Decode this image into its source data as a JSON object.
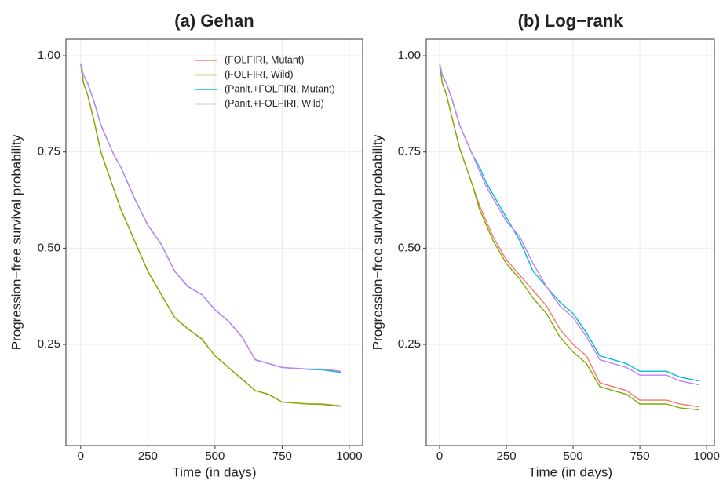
{
  "chart_data": [
    {
      "type": "line",
      "title": "(a) Gehan",
      "x_label": "Time (in days)",
      "y_label": "Progression−free survival probability",
      "x": [
        0,
        10,
        25,
        50,
        75,
        100,
        125,
        150,
        175,
        200,
        250,
        300,
        350,
        400,
        450,
        500,
        550,
        600,
        650,
        700,
        750,
        850,
        900,
        970
      ],
      "xlim": [
        -55,
        1050
      ],
      "xticks": [
        0,
        250,
        500,
        750,
        1000
      ],
      "ylim": [
        -0.013,
        1.043
      ],
      "yticks": [
        {
          "value": 0.25,
          "label": "0.25"
        },
        {
          "value": 0.5,
          "label": "0.50"
        },
        {
          "value": 0.75,
          "label": "0.75"
        },
        {
          "value": 1,
          "label": "1.00"
        }
      ],
      "grid": true,
      "legend": "top-right",
      "series": [
        {
          "name": "(FOLFIRI, Mutant)",
          "color": "#F8766D",
          "values": [
            0.98,
            0.93,
            0.9,
            0.83,
            0.75,
            0.7,
            0.65,
            0.6,
            0.56,
            0.52,
            0.44,
            0.38,
            0.32,
            0.29,
            0.265,
            0.22,
            0.19,
            0.16,
            0.13,
            0.12,
            0.1,
            0.095,
            0.095,
            0.09
          ]
        },
        {
          "name": "(FOLFIRI, Wild)",
          "color": "#7CAE00",
          "values": [
            0.98,
            0.93,
            0.9,
            0.83,
            0.75,
            0.7,
            0.65,
            0.6,
            0.56,
            0.52,
            0.44,
            0.38,
            0.32,
            0.29,
            0.264,
            0.22,
            0.19,
            0.16,
            0.13,
            0.12,
            0.1,
            0.095,
            0.094,
            0.089
          ]
        },
        {
          "name": "(Panit.+FOLFIRI, Mutant)",
          "color": "#00BFC4",
          "values": [
            0.98,
            0.95,
            0.93,
            0.88,
            0.82,
            0.78,
            0.74,
            0.71,
            0.67,
            0.63,
            0.56,
            0.51,
            0.44,
            0.4,
            0.38,
            0.34,
            0.31,
            0.27,
            0.21,
            0.2,
            0.19,
            0.185,
            0.184,
            0.177
          ]
        },
        {
          "name": "(Panit.+FOLFIRI, Wild)",
          "color": "#C77CFF",
          "values": [
            0.98,
            0.95,
            0.93,
            0.88,
            0.82,
            0.78,
            0.74,
            0.71,
            0.67,
            0.63,
            0.56,
            0.51,
            0.44,
            0.4,
            0.38,
            0.34,
            0.31,
            0.27,
            0.21,
            0.2,
            0.19,
            0.186,
            0.186,
            0.18
          ]
        }
      ]
    },
    {
      "type": "line",
      "title": "(b) Log−rank",
      "x_label": "Time (in days)",
      "y_label": "Progression−free survival probability",
      "x": [
        0,
        10,
        25,
        50,
        75,
        100,
        125,
        150,
        175,
        200,
        250,
        300,
        350,
        400,
        450,
        500,
        550,
        600,
        650,
        700,
        750,
        850,
        900,
        970
      ],
      "xlim": [
        -50,
        1029
      ],
      "xticks": [
        0,
        250,
        500,
        750,
        1000
      ],
      "ylim": [
        -0.013,
        1.043
      ],
      "yticks": [
        {
          "value": 0.25,
          "label": "0.25"
        },
        {
          "value": 0.5,
          "label": "0.50"
        },
        {
          "value": 0.75,
          "label": "0.75"
        },
        {
          "value": 1,
          "label": "1.00"
        }
      ],
      "grid": true,
      "series": [
        {
          "color": "#F8766D",
          "values": [
            0.98,
            0.93,
            0.9,
            0.83,
            0.76,
            0.71,
            0.66,
            0.61,
            0.57,
            0.53,
            0.47,
            0.43,
            0.39,
            0.35,
            0.29,
            0.25,
            0.22,
            0.15,
            0.14,
            0.13,
            0.105,
            0.105,
            0.095,
            0.088
          ]
        },
        {
          "color": "#7CAE00",
          "values": [
            0.98,
            0.93,
            0.9,
            0.83,
            0.76,
            0.71,
            0.66,
            0.6,
            0.56,
            0.52,
            0.46,
            0.42,
            0.37,
            0.33,
            0.27,
            0.23,
            0.2,
            0.14,
            0.13,
            0.12,
            0.095,
            0.095,
            0.085,
            0.08
          ]
        },
        {
          "color": "#00BFC4",
          "values": [
            0.98,
            0.95,
            0.93,
            0.88,
            0.82,
            0.78,
            0.74,
            0.71,
            0.67,
            0.64,
            0.58,
            0.52,
            0.44,
            0.4,
            0.36,
            0.33,
            0.28,
            0.22,
            0.21,
            0.2,
            0.18,
            0.18,
            0.165,
            0.155
          ]
        },
        {
          "color": "#C77CFF",
          "values": [
            0.98,
            0.95,
            0.93,
            0.88,
            0.82,
            0.78,
            0.74,
            0.7,
            0.66,
            0.63,
            0.57,
            0.53,
            0.46,
            0.4,
            0.35,
            0.32,
            0.27,
            0.21,
            0.2,
            0.19,
            0.17,
            0.17,
            0.155,
            0.145
          ]
        }
      ]
    }
  ]
}
